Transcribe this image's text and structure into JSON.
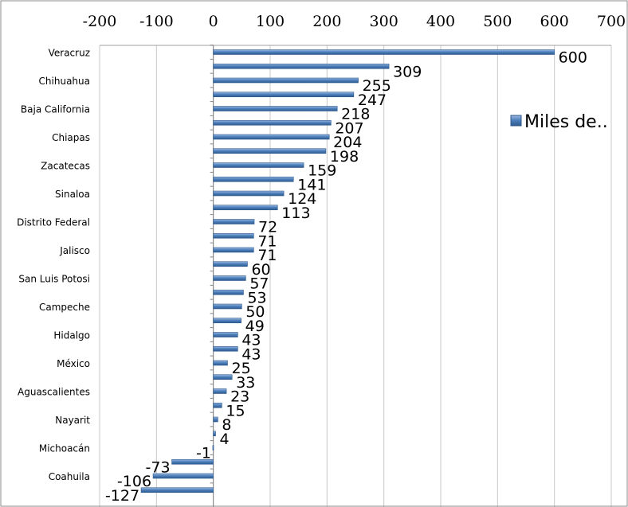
{
  "chart_data": {
    "type": "bar",
    "orientation": "horizontal",
    "x_ticks": [
      "-200",
      "-100",
      "0",
      "100",
      "200",
      "300",
      "400",
      "500",
      "600",
      "700"
    ],
    "xlim": [
      -200,
      700
    ],
    "grid": "vertical major gridlines",
    "legend_position": "right",
    "series": [
      {
        "name": "Miles de..",
        "color": "#4F81BD",
        "values": [
          600,
          309,
          255,
          247,
          218,
          207,
          204,
          198,
          159,
          141,
          124,
          113,
          72,
          71,
          71,
          60,
          57,
          53,
          50,
          49,
          43,
          43,
          25,
          33,
          23,
          15,
          8,
          4,
          -1,
          -73,
          -106,
          -127
        ]
      }
    ],
    "category_labels": [
      "Veracruz",
      "",
      "Chihuahua",
      "",
      "Baja California",
      "",
      "Chiapas",
      "",
      "Zacatecas",
      "",
      "Sinaloa",
      "",
      "Distrito Federal",
      "",
      "Jalisco",
      "",
      "San Luis Potosi",
      "",
      "Campeche",
      "",
      "Hidalgo",
      "",
      "México",
      "",
      "Aguascalientes",
      "",
      "Nayarit",
      "",
      "Michoacán",
      "",
      "Coahuila",
      ""
    ],
    "data_labels": [
      "600",
      "309",
      "255",
      "247",
      "218",
      "207",
      "204",
      "198",
      "159",
      "141",
      "124",
      "113",
      "72",
      "71",
      "71",
      "60",
      "57",
      "53",
      "50",
      "49",
      "43",
      "43",
      "25",
      "33",
      "23",
      "15",
      "8",
      "4",
      "-1",
      "-73",
      "-106",
      "-127"
    ]
  }
}
